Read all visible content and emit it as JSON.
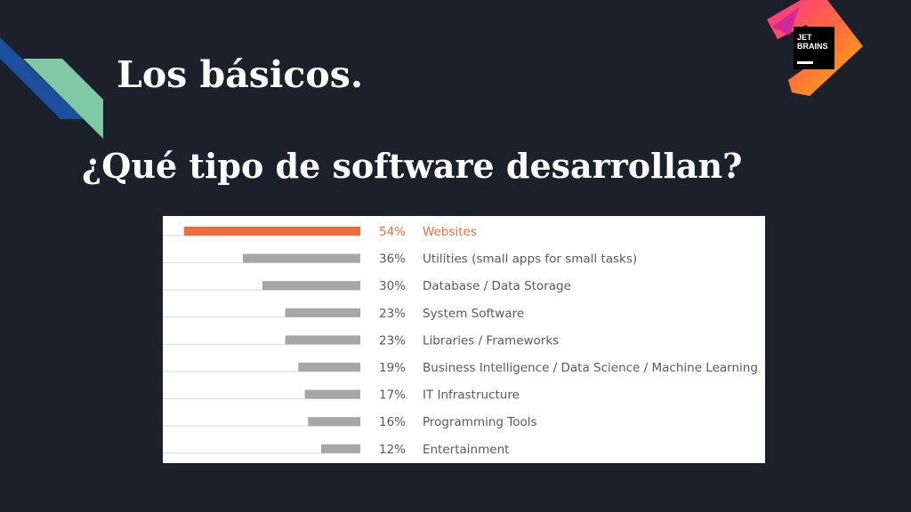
{
  "slide": {
    "title": "Los básicos.",
    "subtitle": "¿Qué tipo de software desarrollan?"
  },
  "logo": {
    "line1": "JET",
    "line2": "BRAINS"
  },
  "colors": {
    "background": "#1b202b",
    "highlight": "#f26b3a",
    "bar": "#a6a6a6",
    "label": "#595959",
    "gridline": "#d9d9d9"
  },
  "chart_data": {
    "type": "bar",
    "orientation": "horizontal",
    "bar_direction": "right-to-left",
    "title": "",
    "xlabel": "",
    "ylabel": "",
    "xlim": [
      0,
      60
    ],
    "grid": false,
    "legend": "none",
    "highlight_index": 0,
    "categories": [
      "Websites",
      "Utilities (small apps for small tasks)",
      "Database / Data Storage",
      "System Software",
      "Libraries / Frameworks",
      "Business Intelligence / Data Science / Machine Learning",
      "IT Infrastructure",
      "Programming Tools",
      "Entertainment"
    ],
    "values": [
      54,
      36,
      30,
      23,
      23,
      19,
      17,
      16,
      12
    ],
    "value_labels": [
      "54%",
      "36%",
      "30%",
      "23%",
      "23%",
      "19%",
      "17%",
      "16%",
      "12%"
    ]
  }
}
